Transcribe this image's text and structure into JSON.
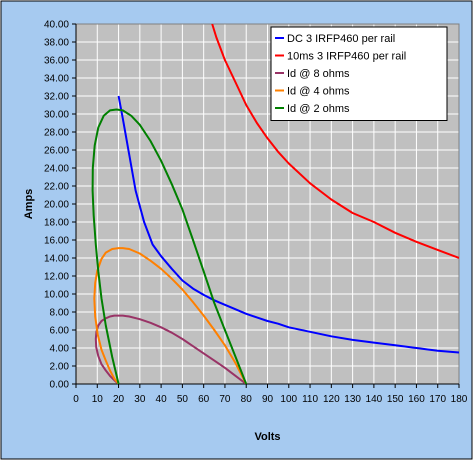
{
  "chart_data": {
    "type": "line",
    "xlabel": "Volts",
    "ylabel": "Amps",
    "xlim": [
      0,
      180
    ],
    "ylim": [
      0,
      40
    ],
    "x_ticks": [
      "0",
      "10",
      "20",
      "30",
      "40",
      "50",
      "60",
      "70",
      "80",
      "90",
      "100",
      "110",
      "120",
      "130",
      "140",
      "150",
      "160",
      "170",
      "180"
    ],
    "y_ticks": [
      "0.00",
      "2.00",
      "4.00",
      "6.00",
      "8.00",
      "10.00",
      "12.00",
      "14.00",
      "16.00",
      "18.00",
      "20.00",
      "22.00",
      "24.00",
      "26.00",
      "28.00",
      "30.00",
      "32.00",
      "34.00",
      "36.00",
      "38.00",
      "40.00"
    ],
    "grid": true,
    "legend_position": "top-right",
    "colors": {
      "chart_background": "#a6caf0",
      "plot_background": "#c0c0c0",
      "grid": "#ffffff"
    },
    "series": [
      {
        "name": "DC 3 IRFP460 per rail",
        "color": "#0000ff",
        "points": [
          [
            20,
            32
          ],
          [
            22,
            29.5
          ],
          [
            25,
            25.5
          ],
          [
            28,
            21.5
          ],
          [
            32,
            18
          ],
          [
            36,
            15.5
          ],
          [
            40,
            14.2
          ],
          [
            45,
            12.8
          ],
          [
            50,
            11.5
          ],
          [
            55,
            10.6
          ],
          [
            60,
            9.9
          ],
          [
            65,
            9.3
          ],
          [
            70,
            8.8
          ],
          [
            75,
            8.3
          ],
          [
            80,
            7.8
          ],
          [
            85,
            7.4
          ],
          [
            90,
            7.0
          ],
          [
            95,
            6.7
          ],
          [
            100,
            6.3
          ],
          [
            110,
            5.8
          ],
          [
            120,
            5.3
          ],
          [
            130,
            4.9
          ],
          [
            140,
            4.6
          ],
          [
            150,
            4.3
          ],
          [
            160,
            4.0
          ],
          [
            170,
            3.7
          ],
          [
            180,
            3.5
          ]
        ]
      },
      {
        "name": "10ms 3 IRFP460 per rail",
        "color": "#ff0000",
        "points": [
          [
            64,
            40
          ],
          [
            66,
            38.5
          ],
          [
            70,
            36
          ],
          [
            75,
            33.5
          ],
          [
            80,
            31
          ],
          [
            85,
            29
          ],
          [
            90,
            27.3
          ],
          [
            95,
            25.8
          ],
          [
            100,
            24.5
          ],
          [
            110,
            22.3
          ],
          [
            120,
            20.5
          ],
          [
            130,
            19.0
          ],
          [
            140,
            18.0
          ],
          [
            150,
            16.8
          ],
          [
            160,
            15.8
          ],
          [
            170,
            14.9
          ],
          [
            180,
            14.0
          ]
        ]
      },
      {
        "name": "Id @ 8 ohms",
        "color": "#993366",
        "points": [
          [
            20,
            0
          ],
          [
            18,
            0.42
          ],
          [
            16,
            0.9
          ],
          [
            14,
            1.5
          ],
          [
            12,
            2.2
          ],
          [
            10.5,
            3.1
          ],
          [
            9.5,
            4.1
          ],
          [
            9.3,
            5.0
          ],
          [
            9.6,
            5.8
          ],
          [
            10.5,
            6.5
          ],
          [
            12,
            7.0
          ],
          [
            14,
            7.3
          ],
          [
            16,
            7.5
          ],
          [
            18,
            7.6
          ],
          [
            20,
            7.6
          ],
          [
            22,
            7.6
          ],
          [
            25,
            7.5
          ],
          [
            30,
            7.2
          ],
          [
            35,
            6.8
          ],
          [
            40,
            6.3
          ],
          [
            45,
            5.7
          ],
          [
            50,
            5.0
          ],
          [
            55,
            4.2
          ],
          [
            60,
            3.4
          ],
          [
            65,
            2.6
          ],
          [
            70,
            1.8
          ],
          [
            75,
            0.9
          ],
          [
            80,
            0
          ]
        ]
      },
      {
        "name": "Id @ 4 ohms",
        "color": "#ff8000",
        "points": [
          [
            20,
            0
          ],
          [
            18,
            0.6
          ],
          [
            16,
            1.5
          ],
          [
            14,
            2.6
          ],
          [
            12,
            3.8
          ],
          [
            10.2,
            5.5
          ],
          [
            9,
            7.5
          ],
          [
            8.6,
            9.5
          ],
          [
            9,
            11.2
          ],
          [
            10,
            12.6
          ],
          [
            12,
            13.9
          ],
          [
            14,
            14.6
          ],
          [
            17,
            15.0
          ],
          [
            20,
            15.1
          ],
          [
            22,
            15.1
          ],
          [
            25,
            15.0
          ],
          [
            30,
            14.5
          ],
          [
            35,
            13.7
          ],
          [
            40,
            12.8
          ],
          [
            45,
            11.7
          ],
          [
            50,
            10.5
          ],
          [
            55,
            9.1
          ],
          [
            60,
            7.6
          ],
          [
            65,
            6.0
          ],
          [
            70,
            4.3
          ],
          [
            75,
            2.3
          ],
          [
            80,
            0
          ]
        ]
      },
      {
        "name": "Id @ 2 ohms",
        "color": "#008000",
        "points": [
          [
            20,
            0
          ],
          [
            17,
            3.0
          ],
          [
            14,
            6.5
          ],
          [
            12,
            9.5
          ],
          [
            10.5,
            12.5
          ],
          [
            9.3,
            15.5
          ],
          [
            8.3,
            18.7
          ],
          [
            7.8,
            21.5
          ],
          [
            7.9,
            24
          ],
          [
            8.8,
            26.5
          ],
          [
            10.5,
            28.5
          ],
          [
            13,
            29.8
          ],
          [
            16,
            30.4
          ],
          [
            19,
            30.5
          ],
          [
            22,
            30.4
          ],
          [
            26,
            29.8
          ],
          [
            30,
            28.8
          ],
          [
            35,
            27.0
          ],
          [
            40,
            24.8
          ],
          [
            45,
            22.2
          ],
          [
            50,
            19.4
          ],
          [
            55,
            16.0
          ],
          [
            60,
            12.5
          ],
          [
            65,
            9.0
          ],
          [
            70,
            6.0
          ],
          [
            75,
            3.0
          ],
          [
            80,
            0
          ]
        ]
      }
    ]
  }
}
